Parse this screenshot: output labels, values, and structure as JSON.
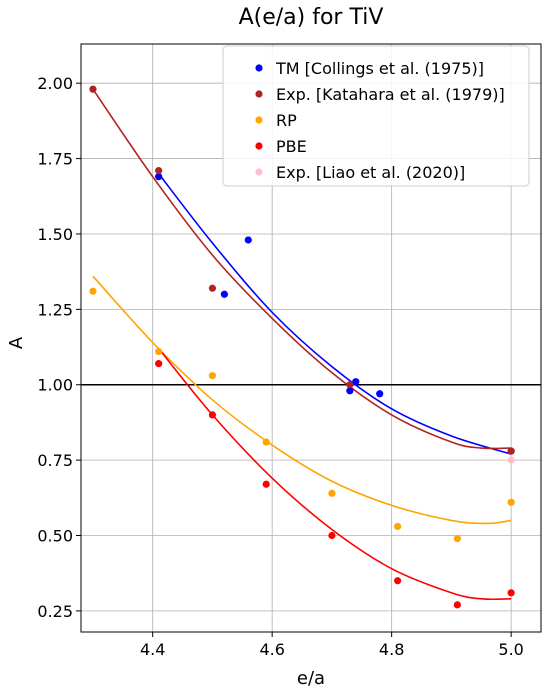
{
  "chart_data": {
    "type": "scatter",
    "title": "A(e/a) for TiV",
    "xlabel": "e/a",
    "ylabel": "A",
    "xlim": [
      4.28,
      5.05
    ],
    "ylim": [
      0.18,
      2.13
    ],
    "xticks": [
      "4.4",
      "4.6",
      "4.8",
      "5.0"
    ],
    "xtick_values": [
      4.4,
      4.6,
      4.8,
      5.0
    ],
    "yticks": [
      "0.25",
      "0.50",
      "0.75",
      "1.00",
      "1.25",
      "1.50",
      "1.75",
      "2.00"
    ],
    "ytick_values": [
      0.25,
      0.5,
      0.75,
      1.0,
      1.25,
      1.5,
      1.75,
      2.0
    ],
    "grid": true,
    "legend_position": "top-right",
    "reference_line": {
      "y": 1.0,
      "color": "#000000"
    },
    "series": [
      {
        "name": "TM [Collings et al. (1975)]",
        "color": "#0000ff",
        "x": [
          4.41,
          4.52,
          4.56,
          4.73,
          4.74,
          4.78,
          5.0
        ],
        "y": [
          1.69,
          1.3,
          1.48,
          0.98,
          1.01,
          0.97,
          0.78
        ],
        "fit": {
          "x": [
            4.41,
            4.5,
            4.6,
            4.7,
            4.8,
            4.9,
            5.0
          ],
          "y": [
            1.7,
            1.47,
            1.24,
            1.06,
            0.92,
            0.83,
            0.77
          ]
        }
      },
      {
        "name": "Exp. [Katahara et al. (1979)]",
        "color": "#b22222",
        "x": [
          4.3,
          4.41,
          4.5,
          4.73,
          5.0
        ],
        "y": [
          1.98,
          1.71,
          1.32,
          1.0,
          0.78
        ],
        "fit": {
          "x": [
            4.3,
            4.4,
            4.5,
            4.6,
            4.7,
            4.8,
            4.9,
            4.95,
            5.0
          ],
          "y": [
            1.98,
            1.69,
            1.43,
            1.22,
            1.04,
            0.9,
            0.81,
            0.79,
            0.79
          ]
        }
      },
      {
        "name": "RP",
        "color": "#ffa500",
        "x": [
          4.3,
          4.41,
          4.5,
          4.59,
          4.7,
          4.81,
          4.91,
          5.0
        ],
        "y": [
          1.31,
          1.11,
          1.03,
          0.81,
          0.64,
          0.53,
          0.49,
          0.61
        ],
        "fit": {
          "x": [
            4.3,
            4.4,
            4.5,
            4.6,
            4.7,
            4.8,
            4.9,
            4.96,
            5.0
          ],
          "y": [
            1.36,
            1.14,
            0.95,
            0.8,
            0.68,
            0.6,
            0.55,
            0.54,
            0.55
          ]
        }
      },
      {
        "name": "PBE",
        "color": "#ff0000",
        "x": [
          4.41,
          4.5,
          4.59,
          4.7,
          4.81,
          4.91,
          5.0
        ],
        "y": [
          1.07,
          0.9,
          0.67,
          0.5,
          0.35,
          0.27,
          0.31
        ],
        "fit": {
          "x": [
            4.41,
            4.5,
            4.6,
            4.7,
            4.8,
            4.9,
            4.95,
            5.0
          ],
          "y": [
            1.12,
            0.9,
            0.69,
            0.52,
            0.39,
            0.31,
            0.29,
            0.29
          ]
        }
      },
      {
        "name": "Exp. [Liao et al. (2020)]",
        "color": "#ffc0cb",
        "x": [
          5.0
        ],
        "y": [
          0.75
        ],
        "fit": null
      }
    ]
  }
}
